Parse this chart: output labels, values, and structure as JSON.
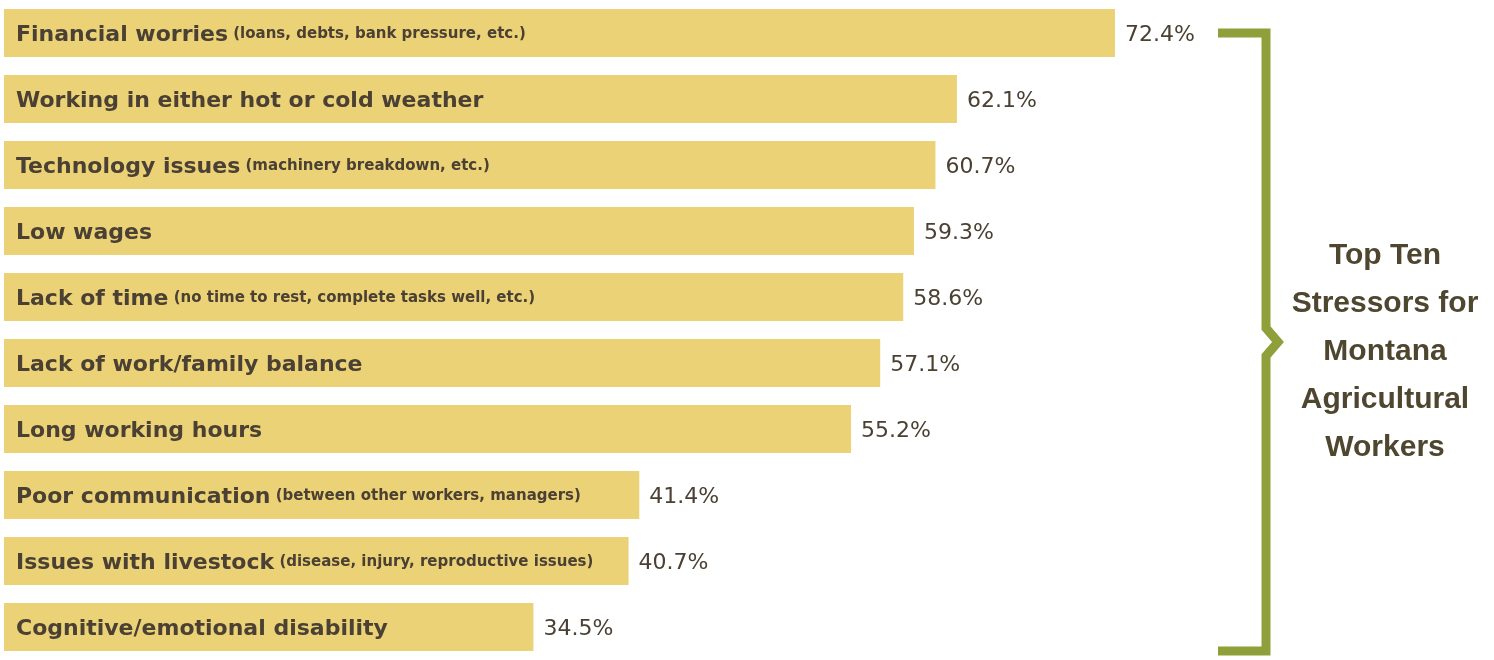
{
  "chart_data": {
    "type": "bar",
    "orientation": "horizontal",
    "title": "Top Ten Stressors for Montana Agricultural Workers",
    "categories": [
      "Financial worries (loans, debts, bank pressure, etc.)",
      "Working in either hot or cold weather",
      "Technology issues (machinery breakdown, etc.)",
      "Low wages",
      "Lack of time (no time to rest, complete tasks well, etc.)",
      "Lack of work/family balance",
      "Long working hours",
      "Poor communication (between other workers, managers)",
      "Issues with livestock (disease, injury, reproductive issues)",
      "Cognitive/emotional disability"
    ],
    "values": [
      72.4,
      62.1,
      60.7,
      59.3,
      58.6,
      57.1,
      55.2,
      41.4,
      40.7,
      34.5
    ],
    "value_labels": [
      "72.4%",
      "62.1%",
      "60.7%",
      "59.3%",
      "58.6%",
      "57.1%",
      "55.2%",
      "41.4%",
      "40.7%",
      "34.5%"
    ],
    "color": "#ecd277"
  }
}
